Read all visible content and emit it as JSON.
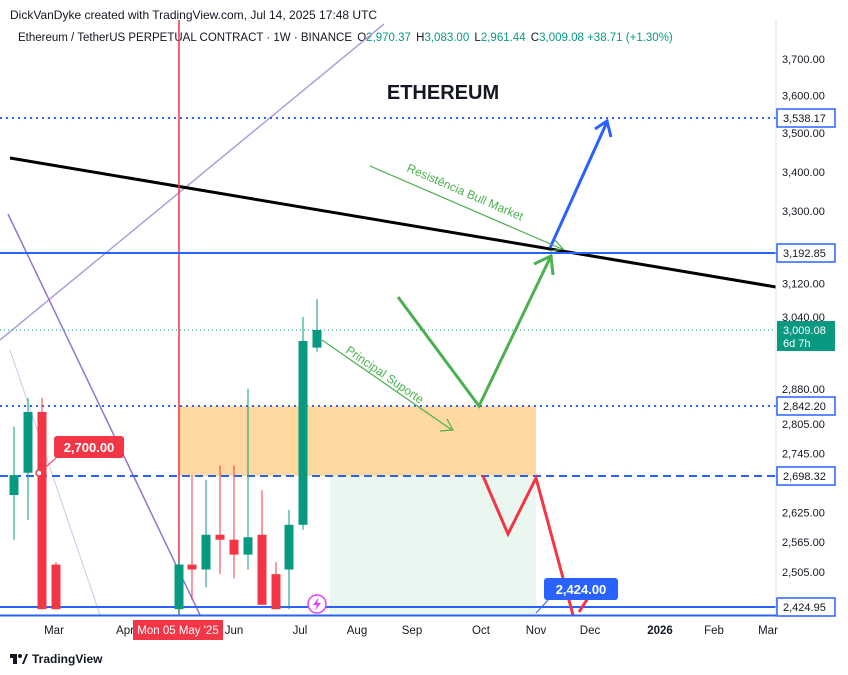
{
  "credit": "DickVanDyke created with TradingView.com, Jul 14, 2025 17:48 UTC",
  "header": {
    "symbol": "Ethereum / TetherUS PERPETUAL CONTRACT · 1W · BINANCE",
    "open_label": "O",
    "open": "2,970.37",
    "high_label": "H",
    "high": "3,083.00",
    "low_label": "L",
    "low": "2,961.44",
    "close_label": "C",
    "close": "3,009.08",
    "change": "+38.71 (+1.30%)"
  },
  "logo_text": "TradingView",
  "colors": {
    "up": "#089981",
    "down": "#f23645",
    "blue": "#2962ff",
    "green": "#4caf50",
    "orange": "#ffb74d",
    "black": "#000000",
    "purple": "#9575cd"
  },
  "chart_data": {
    "type": "candlestick",
    "title": "ETHEREUM",
    "y_axis": {
      "min": 2424.95,
      "max": 3700,
      "ticks": [
        3700,
        3600,
        3500,
        3400,
        3300,
        3192.85,
        3120,
        3040,
        3009.08,
        2880,
        2842.2,
        2805,
        2745,
        2698.32,
        2625,
        2565,
        2505,
        2424.95
      ],
      "tick_labels": [
        "3,700.00",
        "3,600.00",
        "3,500.00",
        "3,400.00",
        "3,300.00",
        "",
        "3,120.00",
        "3,040.00",
        "",
        "2,880.00",
        "",
        "2,805.00",
        "2,745.00",
        "",
        "2,625.00",
        "2,565.00",
        "2,505.00",
        ""
      ]
    },
    "x_axis": {
      "labels": [
        "Mar",
        "Apr",
        "Jun",
        "Jul",
        "Aug",
        "Sep",
        "Oct",
        "Nov",
        "Dec",
        "2026",
        "Feb",
        "Mar"
      ],
      "highlighted_label": "Mon 05 May '25"
    },
    "price_levels": [
      {
        "value": 3538.17,
        "label": "3,538.17",
        "style": "dotted",
        "color": "#2962ff"
      },
      {
        "value": 3192.85,
        "label": "3,192.85",
        "style": "solid",
        "color": "#2962ff"
      },
      {
        "value": 3009.08,
        "label": "3,009.08",
        "sub": "6d 7h",
        "style": "current",
        "color": "#089981"
      },
      {
        "value": 2842.2,
        "label": "2,842.20",
        "style": "dotted",
        "color": "#2962ff"
      },
      {
        "value": 2698.32,
        "label": "2,698.32",
        "style": "dashed",
        "color": "#2962ff"
      },
      {
        "value": 2424.95,
        "label": "2,424.95",
        "style": "solid",
        "color": "#2962ff"
      }
    ],
    "candles": [
      {
        "o": 2660,
        "h": 2800,
        "l": 2570,
        "c": 2700
      },
      {
        "o": 2705,
        "h": 2860,
        "l": 2610,
        "c": 2830
      },
      {
        "o": 2830,
        "h": 2860,
        "l": 2420,
        "c": 2420
      },
      {
        "o": 2520,
        "h": 2525,
        "l": 2420,
        "c": 2420
      },
      {
        "o": 2420,
        "h": 2530,
        "l": 2380,
        "c": 2520
      },
      {
        "o": 2520,
        "h": 2700,
        "l": 2440,
        "c": 2510
      },
      {
        "o": 2510,
        "h": 2690,
        "l": 2470,
        "c": 2580
      },
      {
        "o": 2580,
        "h": 2720,
        "l": 2500,
        "c": 2570
      },
      {
        "o": 2570,
        "h": 2720,
        "l": 2490,
        "c": 2540
      },
      {
        "o": 2540,
        "h": 2880,
        "l": 2510,
        "c": 2575
      },
      {
        "o": 2580,
        "h": 2670,
        "l": 2430,
        "c": 2430
      },
      {
        "o": 2500,
        "h": 2525,
        "l": 2420,
        "c": 2420
      },
      {
        "o": 2510,
        "h": 2630,
        "l": 2420,
        "c": 2600
      },
      {
        "o": 2600,
        "h": 3040,
        "l": 2590,
        "c": 2985
      },
      {
        "o": 2970.37,
        "h": 3083.0,
        "l": 2961.44,
        "c": 3009.08
      }
    ],
    "annotations": [
      {
        "text": "ETHEREUM",
        "kind": "title"
      },
      {
        "text": "Resistência Bull Market",
        "kind": "trendline-label"
      },
      {
        "text": "Principal Suporte",
        "kind": "trendline-label"
      },
      {
        "text": "2,700.00",
        "kind": "price-callout",
        "value": 2700
      },
      {
        "text": "2,424.00",
        "kind": "price-callout",
        "value": 2424
      }
    ]
  }
}
